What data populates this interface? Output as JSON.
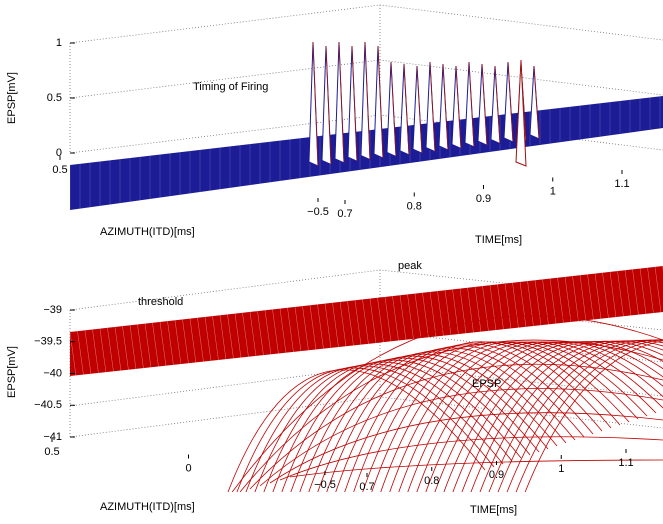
{
  "chart_data": [
    {
      "type": "mesh3d",
      "color": "#1c1c96",
      "edge_color": "#a01010",
      "zlabel": "EPSP[mV]",
      "xlabel": "AZIMUTH(ITD)[ms]",
      "ylabel": "TIME[ms]",
      "annotations": [
        "Timing of Firing"
      ],
      "zlim": [
        0,
        1
      ],
      "zticks": [
        0,
        0.5,
        1
      ],
      "xticks": [
        0.5,
        {
          "value": -0.5,
          "label": "−0.5"
        }
      ],
      "yticks": [
        0.7,
        0.8,
        0.9,
        1,
        1.1
      ]
    },
    {
      "type": "mesh3d",
      "color": "#c00000",
      "zlabel": "EPSP[mV]",
      "xlabel": "AZIMUTH(ITD)[ms]",
      "ylabel": "TIME[ms]",
      "annotations": [
        "peak",
        "threshold",
        "EPSP"
      ],
      "zlim": [
        -41,
        -39
      ],
      "zticks": [
        {
          "value": -41,
          "label": "−41"
        },
        {
          "value": -40.5,
          "label": "−40.5"
        },
        {
          "value": -40,
          "label": "−40"
        },
        {
          "value": -39.5,
          "label": "−39.5"
        },
        {
          "value": -39,
          "label": "−39"
        }
      ],
      "xticks": [
        0.5,
        0,
        {
          "value": -0.5,
          "label": "−0.5"
        }
      ],
      "yticks": [
        0.7,
        0.8,
        0.9,
        1,
        1.1
      ]
    }
  ]
}
